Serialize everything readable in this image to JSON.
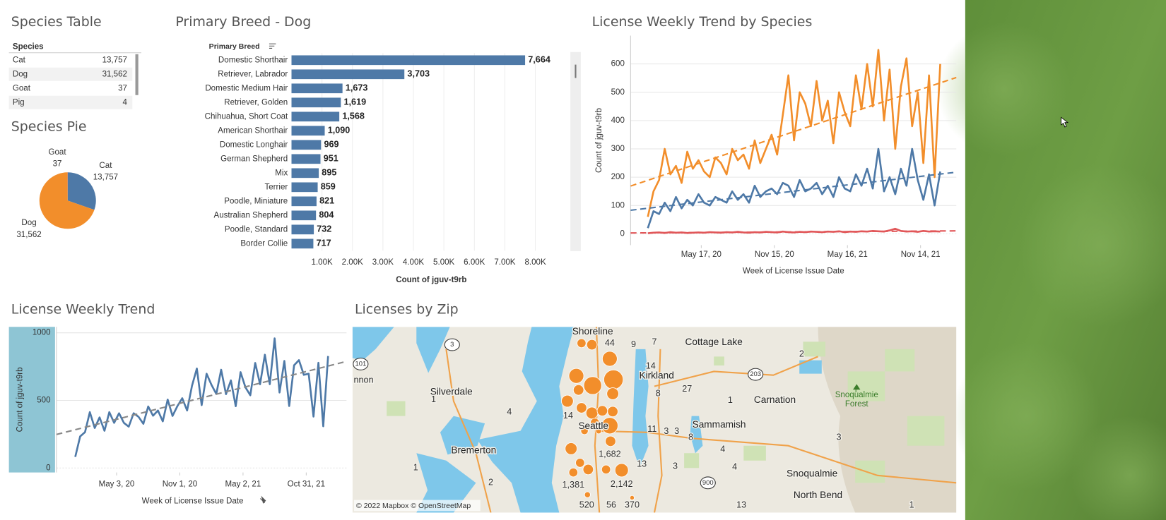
{
  "species_table": {
    "title": "Species Table",
    "header": "Species",
    "rows": [
      [
        "Cat",
        "13,757"
      ],
      [
        "Dog",
        "31,562"
      ],
      [
        "Goat",
        "37"
      ],
      [
        "Pig",
        "4"
      ]
    ]
  },
  "chart_data": [
    {
      "type": "pie",
      "title": "Species Pie",
      "categories": [
        "Cat",
        "Dog",
        "Goat",
        null
      ],
      "values": [
        13757,
        31562,
        37,
        4
      ],
      "value_labels": [
        "13,757",
        "31,562",
        "37",
        null
      ],
      "colors": [
        "#4e79a7",
        "#f28e2b",
        "#e15759",
        "#76b7b2"
      ]
    },
    {
      "type": "bar",
      "orientation": "horizontal",
      "title": "Primary Breed - Dog",
      "category_header": "Primary Breed",
      "categories": [
        "Domestic Shorthair",
        "Retriever, Labrador",
        "Domestic Medium Hair",
        "Retriever, Golden",
        "Chihuahua, Short Coat",
        "American Shorthair",
        "Domestic Longhair",
        "German Shepherd",
        "Mix",
        "Terrier",
        "Poodle, Miniature",
        "Australian Shepherd",
        "Poodle, Standard",
        "Border Collie"
      ],
      "values": [
        7664,
        3703,
        1673,
        1619,
        1568,
        1090,
        969,
        951,
        895,
        859,
        821,
        804,
        732,
        717
      ],
      "value_labels": [
        "7,664",
        "3,703",
        "1,673",
        "1,619",
        "1,568",
        "1,090",
        "969",
        "951",
        "895",
        "859",
        "821",
        "804",
        "732",
        "717"
      ],
      "color": "#4e79a7",
      "xlim": [
        0,
        9100
      ],
      "xticks": [
        {
          "value": 1000,
          "label": "1.00K"
        },
        {
          "value": 2000,
          "label": "2.00K"
        },
        {
          "value": 3000,
          "label": "3.00K"
        },
        {
          "value": 4000,
          "label": "4.00K"
        },
        {
          "value": 5000,
          "label": "5.00K"
        },
        {
          "value": 6000,
          "label": "6.00K"
        },
        {
          "value": 7000,
          "label": "7.00K"
        },
        {
          "value": 8000,
          "label": "8.00K"
        }
      ],
      "x_label": "Count of jguv-t9rb",
      "grid": true
    },
    {
      "type": "line",
      "title": "License Weekly Trend by Species",
      "x": [
        "2020-01-05",
        "2020-01-19",
        "2020-02-02",
        "2020-02-16",
        "2020-03-01",
        "2020-03-15",
        "2020-03-29",
        "2020-04-12",
        "2020-04-26",
        "2020-05-10",
        "2020-05-24",
        "2020-06-07",
        "2020-06-21",
        "2020-07-05",
        "2020-07-19",
        "2020-08-02",
        "2020-08-16",
        "2020-08-30",
        "2020-09-13",
        "2020-09-27",
        "2020-10-11",
        "2020-10-25",
        "2020-11-08",
        "2020-11-22",
        "2020-12-06",
        "2020-12-20",
        "2021-01-03",
        "2021-01-17",
        "2021-01-31",
        "2021-02-14",
        "2021-02-28",
        "2021-03-14",
        "2021-03-28",
        "2021-04-11",
        "2021-04-25",
        "2021-05-09",
        "2021-05-23",
        "2021-06-06",
        "2021-06-20",
        "2021-07-04",
        "2021-07-18",
        "2021-08-01",
        "2021-08-15",
        "2021-08-29",
        "2021-09-12",
        "2021-09-26",
        "2021-10-10",
        "2021-10-24",
        "2021-11-07",
        "2021-11-21",
        "2021-12-05",
        "2021-12-19",
        "2022-01-02"
      ],
      "series": [
        {
          "color": "#f28e2b",
          "values": [
            60,
            150,
            190,
            300,
            210,
            240,
            180,
            290,
            230,
            260,
            220,
            200,
            270,
            250,
            210,
            300,
            260,
            280,
            230,
            330,
            250,
            300,
            350,
            280,
            420,
            560,
            330,
            500,
            460,
            380,
            540,
            400,
            470,
            320,
            500,
            430,
            380,
            560,
            440,
            600,
            450,
            650,
            400,
            580,
            300,
            520,
            620,
            380,
            500,
            250,
            560,
            200,
            600
          ]
        },
        {
          "color": "#4e79a7",
          "values": [
            20,
            80,
            70,
            110,
            80,
            130,
            90,
            120,
            100,
            140,
            110,
            100,
            130,
            120,
            110,
            150,
            120,
            140,
            110,
            170,
            130,
            150,
            160,
            140,
            180,
            170,
            130,
            190,
            150,
            160,
            180,
            140,
            170,
            130,
            200,
            160,
            150,
            210,
            170,
            230,
            160,
            300,
            150,
            200,
            140,
            230,
            170,
            300,
            190,
            120,
            210,
            100,
            220
          ]
        },
        {
          "color": "#e15759",
          "values": [
            2,
            4,
            5,
            3,
            6,
            4,
            5,
            3,
            4,
            5,
            4,
            6,
            5,
            4,
            6,
            5,
            7,
            5,
            4,
            6,
            5,
            7,
            6,
            5,
            8,
            6,
            5,
            7,
            6,
            8,
            7,
            6,
            8,
            7,
            9,
            6,
            8,
            7,
            9,
            8,
            10,
            9,
            8,
            12,
            18,
            10,
            8,
            9,
            7,
            10,
            8,
            9,
            8
          ]
        }
      ],
      "xlim": [
        "2019-11-23",
        "2022-02-11"
      ],
      "xticks": [
        {
          "value": "2020-05-17",
          "label": "May 17, 20"
        },
        {
          "value": "2020-11-15",
          "label": "Nov 15, 20"
        },
        {
          "value": "2021-05-16",
          "label": "May 16, 21"
        },
        {
          "value": "2021-11-14",
          "label": "Nov 14, 21"
        }
      ],
      "ylim": [
        -40,
        700
      ],
      "yticks": [
        0,
        100,
        200,
        300,
        400,
        500,
        600
      ],
      "x_label": "Week of License Issue Date",
      "y_label": "Count of jguv-t9rb",
      "trend_lines": true,
      "trend_color": null,
      "grid": true
    },
    {
      "type": "line",
      "title": "License Weekly Trend",
      "x": [
        "2020-01-05",
        "2020-01-19",
        "2020-02-02",
        "2020-02-16",
        "2020-03-01",
        "2020-03-15",
        "2020-03-29",
        "2020-04-12",
        "2020-04-26",
        "2020-05-10",
        "2020-05-24",
        "2020-06-07",
        "2020-06-21",
        "2020-07-05",
        "2020-07-19",
        "2020-08-02",
        "2020-08-16",
        "2020-08-30",
        "2020-09-13",
        "2020-09-27",
        "2020-10-11",
        "2020-10-25",
        "2020-11-08",
        "2020-11-22",
        "2020-12-06",
        "2020-12-20",
        "2021-01-03",
        "2021-01-17",
        "2021-01-31",
        "2021-02-14",
        "2021-02-28",
        "2021-03-14",
        "2021-03-28",
        "2021-04-11",
        "2021-04-25",
        "2021-05-09",
        "2021-05-23",
        "2021-06-06",
        "2021-06-20",
        "2021-07-04",
        "2021-07-18",
        "2021-08-01",
        "2021-08-15",
        "2021-08-29",
        "2021-09-12",
        "2021-09-26",
        "2021-10-10",
        "2021-10-24",
        "2021-11-07",
        "2021-11-21",
        "2021-12-05",
        "2021-12-19",
        "2022-01-02"
      ],
      "series": [
        {
          "color": "#4e79a7",
          "values": [
            82,
            234,
            265,
            413,
            296,
            374,
            275,
            413,
            334,
            405,
            334,
            306,
            405,
            379,
            327,
            455,
            387,
            425,
            345,
            506,
            385,
            457,
            516,
            425,
            608,
            736,
            465,
            697,
            616,
            548,
            727,
            546,
            648,
            457,
            709,
            596,
            538,
            777,
            619,
            838,
            620,
            959,
            558,
            792,
            458,
            760,
            798,
            689,
            697,
            380,
            778,
            309,
            828
          ]
        }
      ],
      "xlim": [
        "2019-11-12",
        "2022-02-24"
      ],
      "xticks": [
        {
          "value": "2020-05-03",
          "label": "May 3, 20"
        },
        {
          "value": "2020-11-01",
          "label": "Nov 1, 20"
        },
        {
          "value": "2021-05-02",
          "label": "May 2, 21"
        },
        {
          "value": "2021-10-31",
          "label": "Oct 31, 21"
        }
      ],
      "ylim": [
        -33,
        1044
      ],
      "yticks": [
        0,
        500,
        1000
      ],
      "x_label": "Week of License Issue Date",
      "y_label": "Count of jguv-t9rb",
      "trend_lines": true,
      "trend_color": "#888888",
      "grid": true
    }
  ],
  "map": {
    "title": "Licenses by Zip",
    "labels": [
      "Shoreline",
      "44",
      "9",
      "7",
      "Cottage Lake",
      "2",
      "14",
      "Kirkland",
      "nnon",
      "Silverdale",
      "8",
      "27",
      "1",
      "Carnation",
      "1",
      "4",
      "14",
      "Seattle",
      "11",
      "3",
      "3",
      "8",
      "Sammamish",
      "4",
      "3",
      "Bremerton",
      "1,682",
      "13",
      "3",
      "4",
      "1",
      "Snoqualmie",
      "2",
      "1,381",
      "2,142",
      "13",
      "North Bend",
      "520",
      "56",
      "370",
      "1"
    ],
    "forest_labels": [
      "Snoqualmie",
      "Forest"
    ],
    "road_shields": [
      "3",
      "101",
      "203",
      "900"
    ],
    "attribution": "© 2022 Mapbox © OpenStreetMap"
  }
}
